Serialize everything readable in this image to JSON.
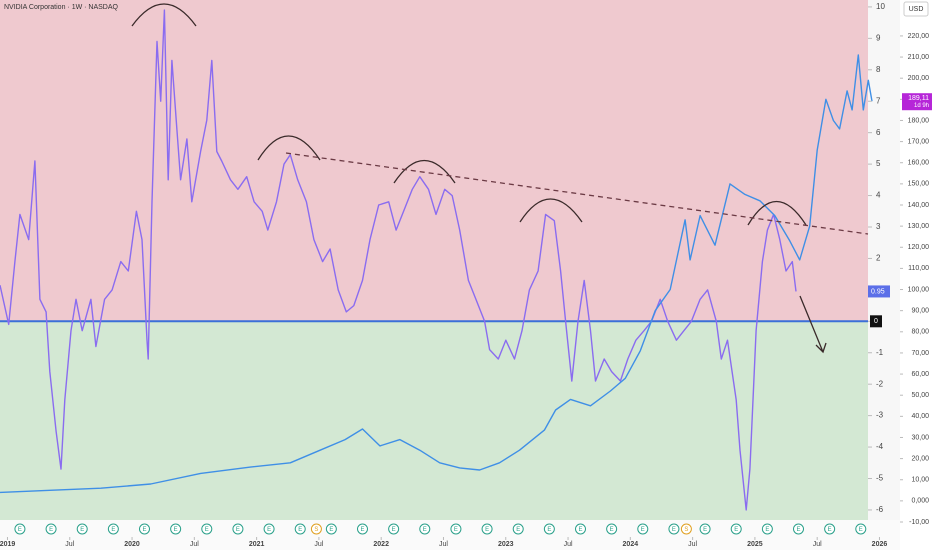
{
  "chart_data": {
    "type": "line",
    "title": "NVIDIA Corporation · 1W · NASDAQ",
    "currency": "USD",
    "last_price_label": "189,11",
    "countdown": "1d 9h",
    "oscillator_last_label": "0.95",
    "xlim": [
      2018.94,
      2025.94
    ],
    "xticks": [
      2019,
      {
        "value": 2019.5,
        "label": "Jul"
      },
      2020,
      {
        "value": 2020.5,
        "label": "Jul"
      },
      2021,
      {
        "value": 2021.5,
        "label": "Jul"
      },
      2022,
      {
        "value": 2022.5,
        "label": "Jul"
      },
      2023,
      {
        "value": 2023.5,
        "label": "Jul"
      },
      2024,
      {
        "value": 2024.5,
        "label": "Jul"
      },
      2025,
      {
        "value": 2025.5,
        "label": "Jul"
      },
      2026
    ],
    "ylim": [
      -6.32,
      10.22
    ],
    "yticks": [
      10,
      9,
      8,
      7,
      6,
      5,
      4,
      3,
      2,
      1,
      0,
      -1,
      -2,
      -3,
      -4,
      -5,
      -6
    ],
    "y2lim": [
      -9.05,
      237
    ],
    "y2ticks": [
      {
        "value": 220,
        "label": "220,00"
      },
      {
        "value": 210,
        "label": "210,00"
      },
      {
        "value": 200,
        "label": "200,00"
      },
      {
        "value": 190,
        "label": "190,00"
      },
      {
        "value": 180,
        "label": "180,00"
      },
      {
        "value": 170,
        "label": "170,00"
      },
      {
        "value": 160,
        "label": "160,00"
      },
      {
        "value": 150,
        "label": "150,00"
      },
      {
        "value": 140,
        "label": "140,00"
      },
      {
        "value": 130,
        "label": "130,00"
      },
      {
        "value": 120,
        "label": "120,00"
      },
      {
        "value": 110,
        "label": "110,00"
      },
      {
        "value": 100,
        "label": "100,00"
      },
      {
        "value": 90,
        "label": "90,00"
      },
      {
        "value": 80,
        "label": "80,00"
      },
      {
        "value": 70,
        "label": "70,00"
      },
      {
        "value": 60,
        "label": "60,00"
      },
      {
        "value": 50,
        "label": "50,00"
      },
      {
        "value": 40,
        "label": "40,00"
      },
      {
        "value": 30,
        "label": "30,00"
      },
      {
        "value": 20,
        "label": "20,00"
      },
      {
        "value": 10,
        "label": "10,00"
      },
      {
        "value": 0,
        "label": "0,000"
      },
      {
        "value": -10,
        "label": "-10,00"
      }
    ],
    "zones": {
      "above": "#efc9cf",
      "below": "#d3e8d3",
      "zero_line": "#3b6fd8"
    },
    "series": [
      {
        "color": "#8a6cf0",
        "axis": "y",
        "x": [
          2018.94,
          2019.01,
          2019.06,
          2019.1,
          2019.17,
          2019.22,
          2019.26,
          2019.31,
          2019.34,
          2019.39,
          2019.43,
          2019.46,
          2019.51,
          2019.55,
          2019.6,
          2019.67,
          2019.71,
          2019.78,
          2019.84,
          2019.91,
          2019.97,
          2020.035,
          2020.08,
          2020.12,
          2020.13,
          2020.16,
          2020.2,
          2020.23,
          2020.26,
          2020.29,
          2020.32,
          2020.36,
          2020.39,
          2020.44,
          2020.48,
          2020.55,
          2020.6,
          2020.64,
          2020.68,
          2020.72,
          2020.79,
          2020.85,
          2020.92,
          2020.98,
          2021.045,
          2021.09,
          2021.16,
          2021.22,
          2021.27,
          2021.33,
          2021.4,
          2021.46,
          2021.53,
          2021.59,
          2021.655,
          2021.72,
          2021.78,
          2021.85,
          2021.91,
          2021.98,
          2022.06,
          2022.12,
          2022.18,
          2022.25,
          2022.31,
          2022.38,
          2022.44,
          2022.51,
          2022.57,
          2022.63,
          2022.7,
          2022.76,
          2022.83,
          2022.87,
          2022.94,
          2023.0,
          2023.07,
          2023.13,
          2023.19,
          2023.26,
          2023.32,
          2023.39,
          2023.44,
          2023.48,
          2023.53,
          2023.58,
          2023.63,
          2023.68,
          2023.72,
          2023.79,
          2023.85,
          2023.92,
          2023.98,
          2024.045,
          2024.11,
          2024.17,
          2024.24,
          2024.3,
          2024.37,
          2024.43,
          2024.49,
          2024.56,
          2024.62,
          2024.69,
          2024.73,
          2024.78,
          2024.85,
          2024.88,
          2024.93,
          2024.96,
          2025.01,
          2025.06,
          2025.1,
          2025.15,
          2025.2,
          2025.25,
          2025.3,
          2025.33
        ],
        "values": [
          1.15,
          -0.1,
          1.9,
          3.4,
          2.6,
          5.1,
          0.7,
          0.3,
          -1.6,
          -3.5,
          -4.7,
          -2.5,
          -0.3,
          0.7,
          -0.3,
          0.7,
          -0.8,
          0.7,
          1.0,
          1.9,
          1.6,
          3.5,
          2.6,
          -0.6,
          -1.2,
          3.8,
          8.9,
          7.0,
          9.9,
          4.5,
          8.3,
          6.1,
          4.5,
          5.8,
          3.8,
          5.4,
          6.4,
          8.3,
          5.4,
          5.1,
          4.5,
          4.2,
          4.6,
          3.8,
          3.5,
          2.9,
          3.8,
          5.0,
          5.3,
          4.5,
          3.8,
          2.6,
          1.9,
          2.3,
          1.0,
          0.3,
          0.5,
          1.3,
          2.6,
          3.7,
          3.8,
          2.9,
          3.5,
          4.2,
          4.6,
          4.2,
          3.4,
          4.2,
          4.0,
          2.9,
          1.3,
          0.7,
          0,
          -0.9,
          -1.2,
          -0.6,
          -1.2,
          -0.3,
          1.0,
          1.6,
          3.4,
          3.2,
          1.6,
          0,
          -1.9,
          0,
          1.3,
          -0.3,
          -1.9,
          -1.2,
          -1.6,
          -1.9,
          -1.2,
          -0.6,
          -0.3,
          0,
          0.7,
          0,
          -0.6,
          -0.3,
          0,
          0.7,
          1.0,
          0,
          -1.2,
          -0.6,
          -2.5,
          -4.1,
          -6.0,
          -4.7,
          -0.3,
          1.9,
          2.9,
          3.4,
          2.6,
          1.6,
          1.9,
          0.95
        ]
      },
      {
        "color": "#3f8fe6",
        "axis": "y2",
        "x": [
          2018.94,
          2019.34,
          2019.75,
          2020.15,
          2020.55,
          2020.95,
          2021.27,
          2021.51,
          2021.71,
          2021.85,
          2021.99,
          2022.15,
          2022.31,
          2022.47,
          2022.63,
          2022.79,
          2022.95,
          2023.11,
          2023.31,
          2023.4,
          2023.52,
          2023.68,
          2023.84,
          2023.96,
          2024.08,
          2024.2,
          2024.32,
          2024.44,
          2024.48,
          2024.56,
          2024.68,
          2024.8,
          2024.92,
          2025.04,
          2025.16,
          2025.28,
          2025.36,
          2025.44,
          2025.5,
          2025.57,
          2025.63,
          2025.68,
          2025.74,
          2025.78,
          2025.83,
          2025.87,
          2025.91,
          2025.94
        ],
        "values": [
          4,
          5,
          6,
          8,
          13,
          16,
          18,
          24,
          29,
          34,
          26,
          29,
          24,
          18,
          15.6,
          14.6,
          18,
          24,
          33.5,
          43,
          48,
          45,
          52,
          58,
          71,
          90,
          100,
          133,
          114,
          135,
          121,
          150,
          145,
          142,
          135,
          123,
          114,
          130,
          166,
          190,
          180,
          176,
          194,
          185,
          211,
          185,
          199,
          189.11
        ]
      }
    ],
    "events": [
      {
        "date": 2019.1,
        "label": "E"
      },
      {
        "date": 2019.35,
        "label": "E"
      },
      {
        "date": 2019.6,
        "label": "E"
      },
      {
        "date": 2019.85,
        "label": "E"
      },
      {
        "date": 2020.1,
        "label": "E"
      },
      {
        "date": 2020.35,
        "label": "E"
      },
      {
        "date": 2020.6,
        "label": "E"
      },
      {
        "date": 2020.85,
        "label": "E"
      },
      {
        "date": 2021.1,
        "label": "E"
      },
      {
        "date": 2021.35,
        "label": "E"
      },
      {
        "date": 2021.48,
        "label": "S"
      },
      {
        "date": 2021.6,
        "label": "E"
      },
      {
        "date": 2021.85,
        "label": "E"
      },
      {
        "date": 2022.1,
        "label": "E"
      },
      {
        "date": 2022.35,
        "label": "E"
      },
      {
        "date": 2022.6,
        "label": "E"
      },
      {
        "date": 2022.85,
        "label": "E"
      },
      {
        "date": 2023.1,
        "label": "E"
      },
      {
        "date": 2023.35,
        "label": "E"
      },
      {
        "date": 2023.6,
        "label": "E"
      },
      {
        "date": 2023.85,
        "label": "E"
      },
      {
        "date": 2024.1,
        "label": "E"
      },
      {
        "date": 2024.35,
        "label": "E"
      },
      {
        "date": 2024.45,
        "label": "S"
      },
      {
        "date": 2024.6,
        "label": "E"
      },
      {
        "date": 2024.85,
        "label": "E"
      },
      {
        "date": 2025.1,
        "label": "E"
      },
      {
        "date": 2025.35,
        "label": "E"
      },
      {
        "date": 2025.6,
        "label": "E"
      },
      {
        "date": 2025.85,
        "label": "E"
      }
    ]
  }
}
